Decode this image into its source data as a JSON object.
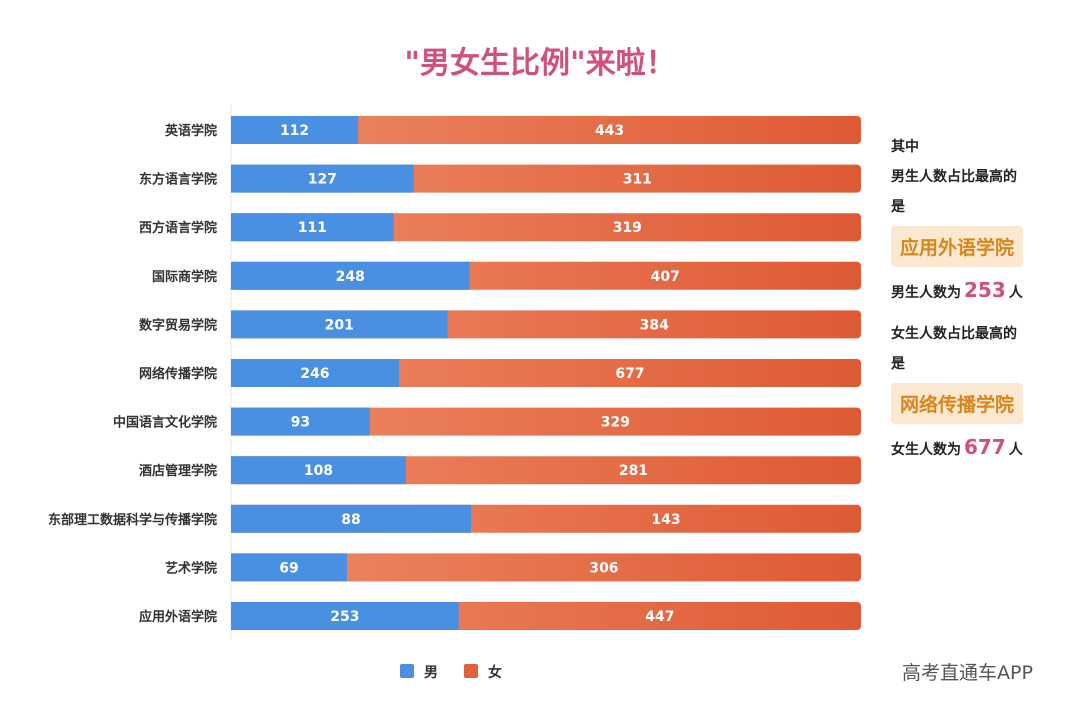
{
  "title": "\"男女生比例\"来啦！",
  "chart_data": {
    "type": "bar",
    "orientation": "horizontal",
    "stacked": true,
    "categories": [
      "英语学院",
      "东方语言学院",
      "西方语言学院",
      "国际商学院",
      "数字贸易学院",
      "网络传播学院",
      "中国语言文化学院",
      "酒店管理学院",
      "东部理工数据科学与传播学院",
      "艺术学院",
      "应用外语学院"
    ],
    "series": [
      {
        "name": "男",
        "color": "#4a90e2",
        "values": [
          112,
          127,
          111,
          248,
          201,
          246,
          93,
          108,
          88,
          69,
          253
        ]
      },
      {
        "name": "女",
        "color": "#e0623a",
        "values": [
          443,
          311,
          319,
          407,
          384,
          677,
          329,
          281,
          143,
          306,
          447
        ]
      }
    ],
    "normalized": true,
    "xlim": [
      0,
      1
    ],
    "legend_position": "bottom",
    "grid": false
  },
  "sidebar": {
    "intro": "其中",
    "male_heading": "男生人数占比最高的",
    "male_is": "是",
    "male_school": "应用外语学院",
    "male_count_prefix": "男生人数为",
    "male_count": "253",
    "male_count_suffix": "人",
    "female_heading": "女生人数占比最高的",
    "female_is": "是",
    "female_school": "网络传播学院",
    "female_count_prefix": "女生人数为",
    "female_count": "677",
    "female_count_suffix": "人"
  },
  "watermark": "高考直通车APP"
}
